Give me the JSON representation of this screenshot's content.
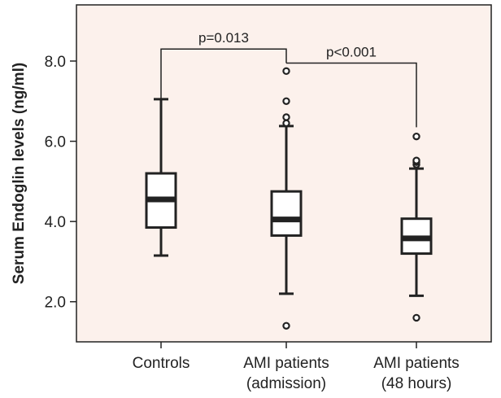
{
  "colors": {
    "plot_background": "#fcf1ec",
    "page_background": "#ffffff",
    "box_fill": "#ffffff",
    "ink": "#222222"
  },
  "chart_data": {
    "type": "boxplot",
    "title": "",
    "xlabel": "",
    "ylabel": "Serum Endoglin levels (ng/ml)",
    "ylim": [
      1.0,
      9.4
    ],
    "yticks": [
      2.0,
      4.0,
      6.0,
      8.0
    ],
    "ytick_labels": [
      "2.0",
      "4.0",
      "6.0",
      "8.0"
    ],
    "grid": false,
    "categories": [
      [
        "Controls"
      ],
      [
        "AMI patients",
        "(admission)"
      ],
      [
        "AMI patients",
        "(48 hours)"
      ]
    ],
    "boxes": [
      {
        "whisker_low": 3.15,
        "q1": 3.85,
        "median": 4.55,
        "q3": 5.2,
        "whisker_high": 7.05,
        "outliers": []
      },
      {
        "whisker_low": 2.2,
        "q1": 3.65,
        "median": 4.05,
        "q3": 4.75,
        "whisker_high": 6.38,
        "outliers": [
          1.4,
          6.45,
          6.6,
          7.0,
          7.75
        ]
      },
      {
        "whisker_low": 2.15,
        "q1": 3.2,
        "median": 3.58,
        "q3": 4.07,
        "whisker_high": 5.32,
        "outliers": [
          1.6,
          5.42,
          5.48,
          5.52,
          6.12
        ]
      }
    ],
    "annotations": [
      {
        "from": 0,
        "to": 1,
        "text": "p=0.013",
        "y": 8.3,
        "drop_from": 7.05,
        "drop_to": 7.95
      },
      {
        "from": 1,
        "to": 2,
        "text": "p<0.001",
        "y": 7.95,
        "drop_from": 7.95,
        "drop_to": 6.35
      }
    ]
  }
}
